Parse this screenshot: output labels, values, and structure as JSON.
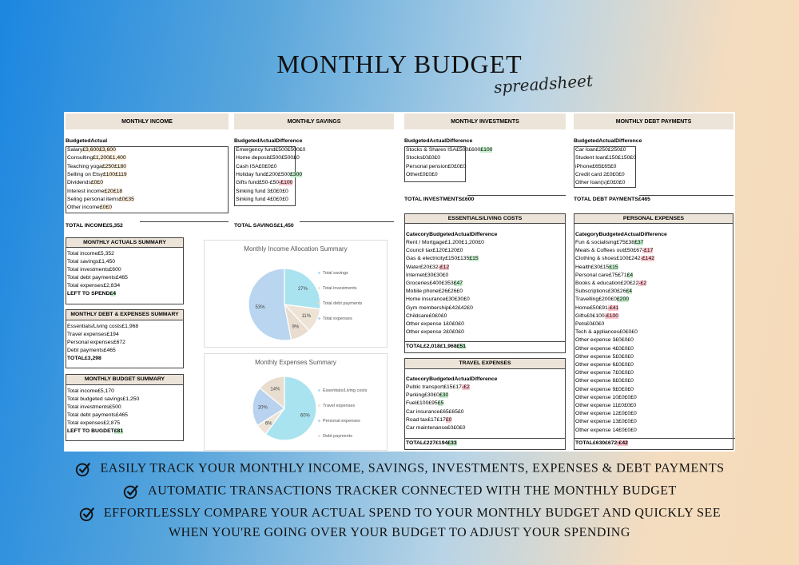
{
  "title": "MONTHLY BUDGET",
  "subtitle": "spreadsheet",
  "income": {
    "header": "MONTHLY INCOME",
    "col_budgeted": "Budgeted",
    "col_actual": "Actual",
    "rows": [
      [
        "Salary",
        "£3,600",
        "£3,600"
      ],
      [
        "Consulting",
        "£1,200",
        "£1,400"
      ],
      [
        "Teaching yoga",
        "£250",
        "£180"
      ],
      [
        "Selling on Etsy",
        "£100",
        "£119"
      ],
      [
        "Dividends",
        "£0",
        "£0"
      ],
      [
        "Interest income",
        "£20",
        "£18"
      ],
      [
        "Seling personal items",
        "£0",
        "£35"
      ],
      [
        "Other income",
        "£0",
        "£0"
      ]
    ],
    "total_label": "TOTAL INCOME",
    "total_value": "£5,352"
  },
  "savings": {
    "header": "MONTHLY SAVINGS",
    "col_budgeted": "Budgeted",
    "col_actual": "Actual",
    "col_diff": "Difference",
    "rows": [
      [
        "Emergency fund",
        "£500",
        "£500",
        "£0",
        ""
      ],
      [
        "Home deposit",
        "£500",
        "£500",
        "£0",
        ""
      ],
      [
        "Cash ISA",
        "£0",
        "£0",
        "£0",
        ""
      ],
      [
        "Holiday fund",
        "£200",
        "£500",
        "£300",
        "pos"
      ],
      [
        "Gifts fund",
        "£50",
        "-£50",
        "-£100",
        "neg"
      ],
      [
        "Sinking fund 3",
        "£0",
        "£0",
        "£0",
        ""
      ],
      [
        "Sinking fund 4",
        "£0",
        "£0",
        "£0",
        ""
      ]
    ],
    "total_label": "TOTAL SAVINGS",
    "total_value": "£1,450"
  },
  "investments": {
    "header": "MONTHLY INVESTMENTS",
    "col_budgeted": "Budgeted",
    "col_actual": "Actual",
    "col_diff": "Difference",
    "rows": [
      [
        "Stocks & Shares ISA",
        "£500",
        "£600",
        "£100",
        "pos"
      ],
      [
        "Stocks",
        "£0",
        "£0",
        "£0",
        ""
      ],
      [
        "Personal pension",
        "£0",
        "£0",
        "£0",
        ""
      ],
      [
        "Other",
        "£0",
        "£0",
        "£0",
        ""
      ]
    ],
    "total_label": "TOTAL INVESTMENTS",
    "total_value": "£600"
  },
  "debt": {
    "header": "MONTHLY DEBT PAYMENTS",
    "col_budgeted": "Budgeted",
    "col_actual": "Actual",
    "col_diff": "Difference",
    "rows": [
      [
        "Car loan",
        "£250",
        "£250",
        "£0",
        ""
      ],
      [
        "Student loan",
        "£150",
        "£150",
        "£0",
        ""
      ],
      [
        "iPhone",
        "£65",
        "£65",
        "£0",
        ""
      ],
      [
        "Credit card 2",
        "£0",
        "£0",
        "£0",
        ""
      ],
      [
        "Other loan(s)",
        "£0",
        "£0",
        "£0",
        ""
      ]
    ],
    "total_label": "TOTAL DEBT PAYMENTS",
    "total_value": "£465"
  },
  "actuals_summary": {
    "header": "MONTHLY ACTUALS SUMMARY",
    "rows": [
      [
        "Total income",
        "£5,352",
        ""
      ],
      [
        "Total savings",
        "£1,450",
        ""
      ],
      [
        "Total investments",
        "£600",
        ""
      ],
      [
        "Total debt payments",
        "£465",
        ""
      ],
      [
        "Total expenses",
        "£2,834",
        ""
      ],
      [
        "LEFT TO SPEND",
        "£4",
        "pos"
      ]
    ]
  },
  "debt_expenses_summary": {
    "header": "MONTHLY DEBT & EXPENSES SUMMARY",
    "rows": [
      [
        "Essentials/Living costs",
        "£1,968"
      ],
      [
        "Travel expenses",
        "£194"
      ],
      [
        "Personal expenses",
        "£672"
      ],
      [
        "Debt payments",
        "£465"
      ],
      [
        "TOTAL",
        "£3,298"
      ]
    ]
  },
  "budget_summary": {
    "header": "MONTHLY BUDGET SUMMARY",
    "rows": [
      [
        "Total income",
        "£5,170",
        ""
      ],
      [
        "Total budgeted savings",
        "£1,250",
        ""
      ],
      [
        "Total investments",
        "£500",
        ""
      ],
      [
        "Total debt payments",
        "£465",
        ""
      ],
      [
        "Total expenses",
        "£2,875",
        ""
      ],
      [
        "LEFT TO BUGDET",
        "£81",
        "pos"
      ]
    ]
  },
  "essentials": {
    "header": "ESSENTIALS/LIVING COSTS",
    "col_cat": "Catecory",
    "col_budgeted": "Budgeted",
    "col_actual": "Actual",
    "col_diff": "Difference",
    "rows": [
      [
        "Rent / Mortgage",
        "£1,200",
        "£1,200",
        "£0",
        ""
      ],
      [
        "Council tax",
        "£120",
        "£120",
        "£0",
        ""
      ],
      [
        "Gas & electricity",
        "£150",
        "£135",
        "£15",
        "pos"
      ],
      [
        "Water",
        "£20",
        "£32",
        "-£12",
        "neg"
      ],
      [
        "Internet",
        "£30",
        "£30",
        "£0",
        ""
      ],
      [
        "Groceries",
        "£400",
        "£353",
        "£47",
        "pos"
      ],
      [
        "Mobile phone",
        "£26",
        "£26",
        "£0",
        ""
      ],
      [
        "Home insurance",
        "£30",
        "£30",
        "£0",
        ""
      ],
      [
        "Gym membership",
        "£42",
        "£42",
        "£0",
        ""
      ],
      [
        "Childcare",
        "£0",
        "£0",
        "£0",
        ""
      ],
      [
        "Other expense 1",
        "£0",
        "£0",
        "£0",
        ""
      ],
      [
        "Other expense 2",
        "£0",
        "£0",
        "£0",
        ""
      ]
    ],
    "total": [
      "TOTAL",
      "£2,018",
      "£1,968",
      "£51"
    ]
  },
  "travel": {
    "header": "TRAVEL EXPENSES",
    "col_cat": "Catecory",
    "col_budgeted": "Budgeted",
    "col_actual": "Actual",
    "col_diff": "Difference",
    "rows": [
      [
        "Public transport",
        "£15",
        "£17",
        "-£2",
        "neg"
      ],
      [
        "Parking",
        "£30",
        "£0",
        "£30",
        "pos"
      ],
      [
        "Fuel",
        "£100",
        "£95",
        "£5",
        "pos"
      ],
      [
        "Car insurance",
        "£65",
        "£65",
        "£0",
        ""
      ],
      [
        "Road tax",
        "£17",
        "£17",
        "£0",
        "neg"
      ],
      [
        "Car maintenance",
        "£0",
        "£0",
        "£0",
        ""
      ]
    ],
    "total": [
      "TOTAL",
      "£227",
      "£194",
      "£33"
    ]
  },
  "personal": {
    "header": "PERSONAL EXPENSES",
    "col_cat": "Category",
    "col_budgeted": "Budgeted",
    "col_actual": "Actual",
    "col_diff": "Difference",
    "rows": [
      [
        "Fun & socialising",
        "£75",
        "£38",
        "£37",
        "pos"
      ],
      [
        "Meals & Coffees out",
        "£50",
        "£67",
        "-£17",
        "neg"
      ],
      [
        "Clothing & shoes",
        "£100",
        "£242",
        "-£142",
        "neg"
      ],
      [
        "Health",
        "£30",
        "£15",
        "£15",
        "pos"
      ],
      [
        "Personal care",
        "£75",
        "£71",
        "£4",
        "pos"
      ],
      [
        "Books & education",
        "£20",
        "£22",
        "-£2",
        "neg"
      ],
      [
        "Subscriptions",
        "£30",
        "£26",
        "£4",
        "pos"
      ],
      [
        "Travelling",
        "£200",
        "£0",
        "£200",
        "pos"
      ],
      [
        "Home",
        "£50",
        "£91",
        "-£41",
        "neg"
      ],
      [
        "Gifts",
        "£0",
        "£100",
        "-£100",
        "neg"
      ],
      [
        "Pets",
        "£0",
        "£0",
        "£0",
        ""
      ],
      [
        "Tech & appliances",
        "£0",
        "£0",
        "£0",
        ""
      ],
      [
        "Other expense 3",
        "£0",
        "£0",
        "£0",
        ""
      ],
      [
        "Other expense 4",
        "£0",
        "£0",
        "£0",
        ""
      ],
      [
        "Other expense 5",
        "£0",
        "£0",
        "£0",
        ""
      ],
      [
        "Other expense 6",
        "£0",
        "£0",
        "£0",
        ""
      ],
      [
        "Other expense 7",
        "£0",
        "£0",
        "£0",
        ""
      ],
      [
        "Other expense 8",
        "£0",
        "£0",
        "£0",
        ""
      ],
      [
        "Other expense 9",
        "£0",
        "£0",
        "£0",
        ""
      ],
      [
        "Other expense 10",
        "£0",
        "£0",
        "£0",
        ""
      ],
      [
        "Other expense 11",
        "£0",
        "£0",
        "£0",
        ""
      ],
      [
        "Other expense 12",
        "£0",
        "£0",
        "£0",
        ""
      ],
      [
        "Other expense 13",
        "£0",
        "£0",
        "£0",
        ""
      ],
      [
        "Other expense 14",
        "£0",
        "£0",
        "£0",
        ""
      ]
    ],
    "total": [
      "TOTAL",
      "£630",
      "£672",
      "-£42"
    ]
  },
  "chart_data": [
    {
      "type": "pie",
      "title": "Monthly Income Allocation Summary",
      "categories": [
        "Total savings",
        "Total investments",
        "Total debt payments",
        "Total expenses"
      ],
      "values": [
        27,
        11,
        9,
        53
      ],
      "labels": [
        "27%",
        "11%",
        "9%",
        "53%"
      ],
      "colors": [
        "#a9e3ef",
        "#ede4d6",
        "#e9ddd0",
        "#b9d5ef"
      ],
      "legend_position": "right"
    },
    {
      "type": "pie",
      "title": "Monthly Expenses Summary",
      "categories": [
        "Essentials/Living costs",
        "Travel expenses",
        "Personal expenses",
        "Debt payments"
      ],
      "values": [
        60,
        6,
        20,
        14
      ],
      "labels": [
        "60%",
        "6%",
        "20%",
        "14%"
      ],
      "colors": [
        "#a9e3ef",
        "#ede4d6",
        "#b9d2ef",
        "#e9ddd0"
      ],
      "legend_position": "right"
    }
  ],
  "features": [
    "EASILY TRACK YOUR MONTHLY INCOME, SAVINGS, INVESTMENTS, EXPENSES & DEBT PAYMENTS",
    "AUTOMATIC TRANSACTIONS TRACKER CONNECTED WITH THE MONTHLY BUDGET",
    "EFFORTLESSLY COMPARE YOUR ACTUAL SPEND TO YOUR MONTHLY BUDGET AND QUICKLY SEE",
    "WHEN YOU'RE GOING OVER YOUR BUDGET TO ADJUST YOUR SPENDING"
  ]
}
